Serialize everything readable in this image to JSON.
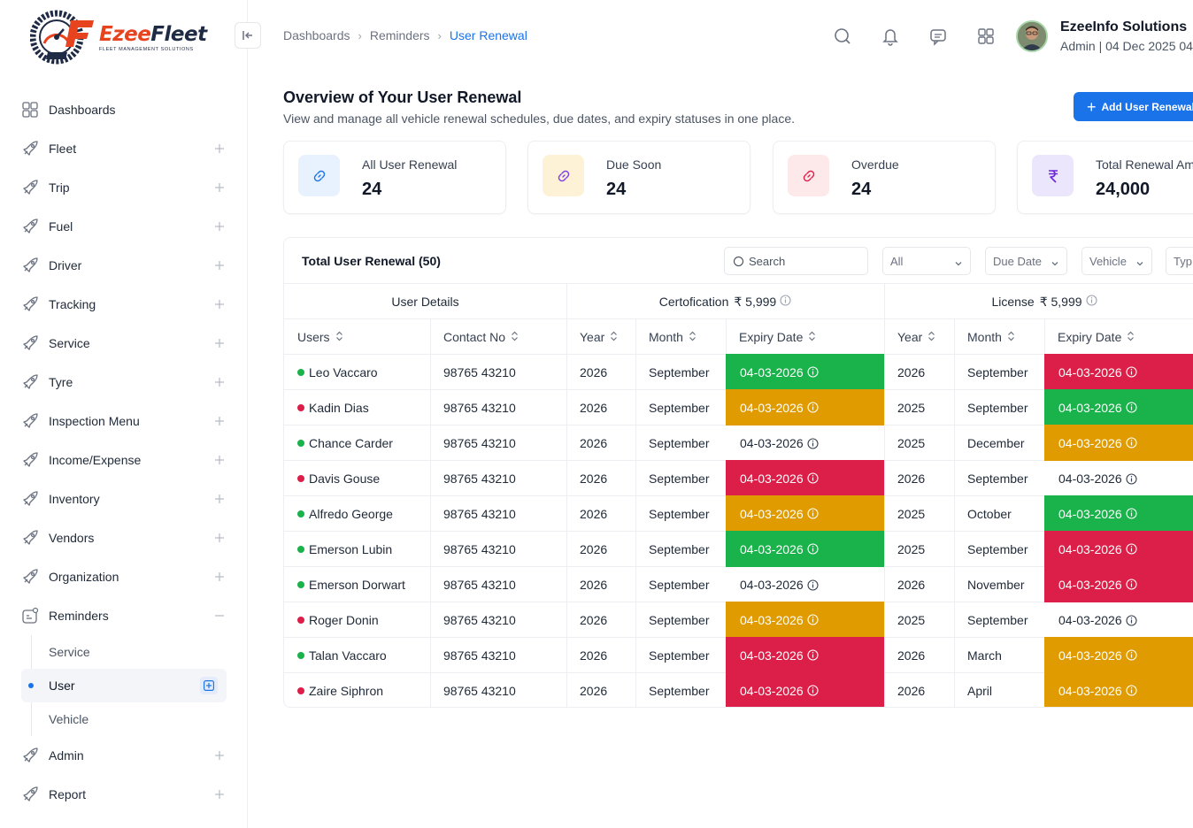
{
  "brand": {
    "name_part1": "Ezee",
    "name_part2": "Fleet",
    "tagline": "FLEET MANAGEMENT SOLUTIONS"
  },
  "sidebar": {
    "items": [
      {
        "label": "Dashboards",
        "icon": "grid-icon",
        "expandable": false
      },
      {
        "label": "Fleet",
        "icon": "rocket-icon",
        "expandable": true
      },
      {
        "label": "Trip",
        "icon": "rocket-icon",
        "expandable": true
      },
      {
        "label": "Fuel",
        "icon": "rocket-icon",
        "expandable": true
      },
      {
        "label": "Driver",
        "icon": "rocket-icon",
        "expandable": true
      },
      {
        "label": "Tracking",
        "icon": "rocket-icon",
        "expandable": true
      },
      {
        "label": "Service",
        "icon": "rocket-icon",
        "expandable": true
      },
      {
        "label": "Tyre",
        "icon": "rocket-icon",
        "expandable": true
      },
      {
        "label": "Inspection Menu",
        "icon": "rocket-icon",
        "expandable": true
      },
      {
        "label": "Income/Expense",
        "icon": "rocket-icon",
        "expandable": true
      },
      {
        "label": "Inventory",
        "icon": "rocket-icon",
        "expandable": true
      },
      {
        "label": "Vendors",
        "icon": "rocket-icon",
        "expandable": true
      },
      {
        "label": "Organization",
        "icon": "rocket-icon",
        "expandable": true
      },
      {
        "label": "Reminders",
        "icon": "reminder-icon",
        "expanded": true
      }
    ],
    "reminders_sub": [
      {
        "label": "Service",
        "active": false
      },
      {
        "label": "User",
        "active": true
      },
      {
        "label": "Vehicle",
        "active": false
      }
    ],
    "items_after": [
      {
        "label": "Admin",
        "icon": "rocket-icon",
        "expandable": true
      },
      {
        "label": "Report",
        "icon": "rocket-icon",
        "expandable": true
      }
    ]
  },
  "breadcrumb": [
    "Dashboards",
    "Reminders",
    "User Renewal"
  ],
  "user": {
    "name": "EzeeInfo Solutions",
    "role": "Admin | 04 Dec 2025 04"
  },
  "page": {
    "title": "Overview of Your User Renewal",
    "subtitle": "View and manage all vehicle renewal schedules, due dates, and expiry statuses in one place.",
    "add_button": "Add User Renewal"
  },
  "stats": [
    {
      "label": "All User Renewal",
      "value": "24",
      "icon": "link-icon",
      "bg": "#e8f1fe",
      "fg": "#1a73e8"
    },
    {
      "label": "Due Soon",
      "value": "24",
      "icon": "link-icon",
      "bg": "#fdf1d6",
      "fg": "#7c3aed"
    },
    {
      "label": "Overdue",
      "value": "24",
      "icon": "link-icon",
      "bg": "#fde8ea",
      "fg": "#e11d48"
    },
    {
      "label": "Total Renewal Am",
      "value": "24,000",
      "icon": "rupee-icon",
      "bg": "#ece6fd",
      "fg": "#6d28d9"
    }
  ],
  "table": {
    "title": "Total User Renewal (50)",
    "search_placeholder": "Search",
    "filters": [
      "All",
      "Due Date",
      "Vehicle",
      "Typ"
    ],
    "groups": [
      {
        "label": "User Details",
        "amount": ""
      },
      {
        "label": "Certofication",
        "amount": "₹ 5,999"
      },
      {
        "label": "License",
        "amount": "₹ 5,999"
      }
    ],
    "columns": [
      "Users",
      "Contact No",
      "Year",
      "Month",
      "Expiry Date",
      "Year",
      "Month",
      "Expiry Date"
    ],
    "rows": [
      {
        "user": "Leo Vaccaro",
        "status": "active",
        "contact": "98765 43210",
        "c_year": "2026",
        "c_month": "September",
        "c_exp": "04-03-2026",
        "c_state": "green",
        "l_year": "2026",
        "l_month": "September",
        "l_exp": "04-03-2026",
        "l_state": "red"
      },
      {
        "user": "Kadin Dias",
        "status": "inactive",
        "contact": "98765 43210",
        "c_year": "2026",
        "c_month": "September",
        "c_exp": "04-03-2026",
        "c_state": "yellow",
        "l_year": "2025",
        "l_month": "September",
        "l_exp": "04-03-2026",
        "l_state": "green"
      },
      {
        "user": "Chance Carder",
        "status": "active",
        "contact": "98765 43210",
        "c_year": "2026",
        "c_month": "September",
        "c_exp": "04-03-2026",
        "c_state": "plain",
        "l_year": "2025",
        "l_month": "December",
        "l_exp": "04-03-2026",
        "l_state": "yellow"
      },
      {
        "user": "Davis Gouse",
        "status": "inactive",
        "contact": "98765 43210",
        "c_year": "2026",
        "c_month": "September",
        "c_exp": "04-03-2026",
        "c_state": "red",
        "l_year": "2026",
        "l_month": "September",
        "l_exp": "04-03-2026",
        "l_state": "plain"
      },
      {
        "user": "Alfredo George",
        "status": "active",
        "contact": "98765 43210",
        "c_year": "2026",
        "c_month": "September",
        "c_exp": "04-03-2026",
        "c_state": "yellow",
        "l_year": "2025",
        "l_month": "October",
        "l_exp": "04-03-2026",
        "l_state": "green"
      },
      {
        "user": "Emerson Lubin",
        "status": "active",
        "contact": "98765 43210",
        "c_year": "2026",
        "c_month": "September",
        "c_exp": "04-03-2026",
        "c_state": "green",
        "l_year": "2025",
        "l_month": "September",
        "l_exp": "04-03-2026",
        "l_state": "red"
      },
      {
        "user": "Emerson Dorwart",
        "status": "active",
        "contact": "98765 43210",
        "c_year": "2026",
        "c_month": "September",
        "c_exp": "04-03-2026",
        "c_state": "plain",
        "l_year": "2026",
        "l_month": "November",
        "l_exp": "04-03-2026",
        "l_state": "red"
      },
      {
        "user": "Roger Donin",
        "status": "inactive",
        "contact": "98765 43210",
        "c_year": "2026",
        "c_month": "September",
        "c_exp": "04-03-2026",
        "c_state": "yellow",
        "l_year": "2025",
        "l_month": "September",
        "l_exp": "04-03-2026",
        "l_state": "plain"
      },
      {
        "user": "Talan Vaccaro",
        "status": "active",
        "contact": "98765 43210",
        "c_year": "2026",
        "c_month": "September",
        "c_exp": "04-03-2026",
        "c_state": "red",
        "l_year": "2026",
        "l_month": "March",
        "l_exp": "04-03-2026",
        "l_state": "yellow"
      },
      {
        "user": "Zaire Siphron",
        "status": "inactive",
        "contact": "98765 43210",
        "c_year": "2026",
        "c_month": "September",
        "c_exp": "04-03-2026",
        "c_state": "red",
        "l_year": "2026",
        "l_month": "April",
        "l_exp": "04-03-2026",
        "l_state": "yellow"
      }
    ]
  },
  "colors": {
    "accent": "#1a73e8",
    "active_dot": "#1ab24b",
    "inactive_dot": "#dc1f48"
  }
}
